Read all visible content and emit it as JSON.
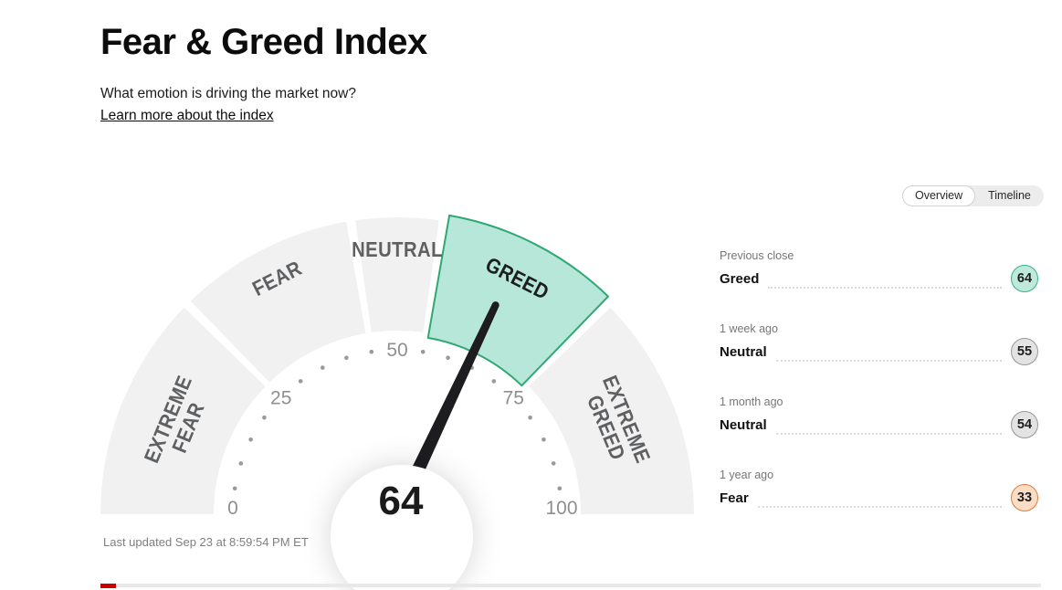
{
  "page": {
    "title": "Fear & Greed Index",
    "subtitle": "What emotion is driving the market now?",
    "learn_more": "Learn more about the index",
    "last_updated": "Last updated Sep 23 at 8:59:54 PM ET"
  },
  "tabs": {
    "overview": "Overview",
    "timeline": "Timeline",
    "active": "Overview"
  },
  "history": {
    "rows": [
      {
        "period": "Previous close",
        "label": "Greed",
        "value": "64",
        "fill": "#bfe9db",
        "border": "#35b28a"
      },
      {
        "period": "1 week ago",
        "label": "Neutral",
        "value": "55",
        "fill": "#e3e3e3",
        "border": "#979797"
      },
      {
        "period": "1 month ago",
        "label": "Neutral",
        "value": "54",
        "fill": "#e3e3e3",
        "border": "#979797"
      },
      {
        "period": "1 year ago",
        "label": "Fear",
        "value": "33",
        "fill": "#fbdcc5",
        "border": "#dd7e3c"
      }
    ]
  },
  "chart_data": {
    "type": "gauge",
    "title": "Fear & Greed Index",
    "value": 64,
    "value_label": "Greed",
    "min": 0,
    "max": 100,
    "axis_ticks": [
      0,
      25,
      50,
      75,
      100
    ],
    "dot_interval": 5,
    "segments": [
      {
        "label": "Extreme Fear",
        "lines": [
          "EXTREME",
          "FEAR"
        ],
        "from": 0,
        "to": 25,
        "active": false
      },
      {
        "label": "Fear",
        "lines": [
          "FEAR"
        ],
        "from": 25,
        "to": 45,
        "active": false
      },
      {
        "label": "Neutral",
        "lines": [
          "NEUTRAL"
        ],
        "from": 45,
        "to": 55,
        "active": false
      },
      {
        "label": "Greed",
        "lines": [
          "GREED"
        ],
        "from": 55,
        "to": 75,
        "active": true
      },
      {
        "label": "Extreme Greed",
        "lines": [
          "EXTREME",
          "GREED"
        ],
        "from": 75,
        "to": 100,
        "active": false
      }
    ],
    "colors": {
      "segment": "#f1f1f2",
      "active_fill": "#b7e7d8",
      "active_stroke": "#2fa874",
      "needle": "#1d1d1f",
      "label": "#5f6062",
      "active_label": "#1d1e20",
      "axis": "#8d8f91",
      "dot": "#97999b"
    }
  }
}
